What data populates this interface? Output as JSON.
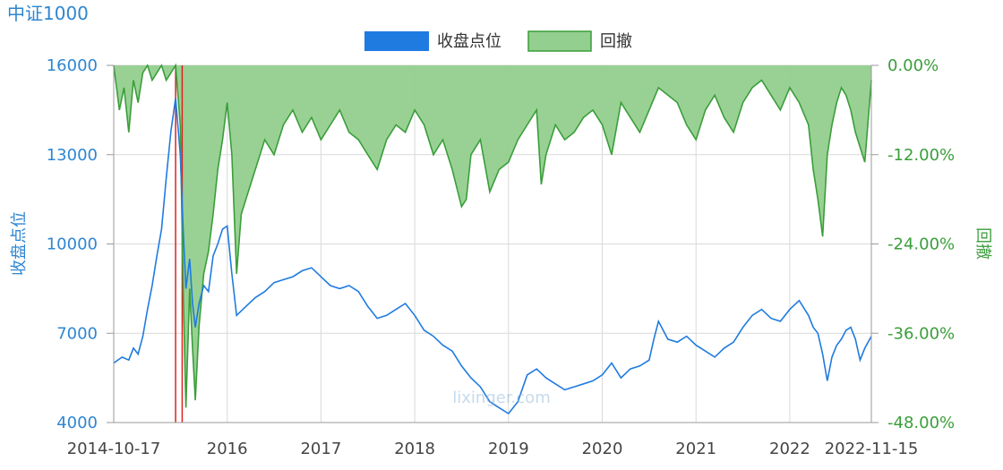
{
  "chart_data": {
    "type": "line",
    "title": "中证1000",
    "legend": [
      {
        "label": "收盘点位",
        "color": "#1f7be0"
      },
      {
        "label": "回撤",
        "color": "#3a9e3a"
      }
    ],
    "legend_placement": "top-center",
    "ylabel_left": "收盘点位",
    "ylabel_right": "回撤",
    "y_left": {
      "min": 4000,
      "max": 16000,
      "ticks": [
        "16000",
        "13000",
        "10000",
        "7000",
        "4000"
      ],
      "tick_values": [
        16000,
        13000,
        10000,
        7000,
        4000
      ]
    },
    "y_right": {
      "min": -48,
      "max": 0,
      "ticks": [
        "0.00%",
        "-12.00%",
        "-24.00%",
        "-36.00%",
        "-48.00%"
      ],
      "tick_values": [
        0,
        -12,
        -24,
        -36,
        -48
      ]
    },
    "x_axis": {
      "start": "2014-10-17",
      "end": "2022-11-15",
      "labels": [
        "2014-10-17",
        "2016",
        "2017",
        "2018",
        "2019",
        "2020",
        "2021",
        "2022",
        "2022-11-15"
      ],
      "label_values": [
        2014.79,
        2016.0,
        2017.0,
        2018.0,
        2019.0,
        2020.0,
        2021.0,
        2022.0,
        2022.87
      ]
    },
    "grid": true,
    "markers": [
      {
        "x": 2015.45,
        "color": "#e02020"
      },
      {
        "x": 2015.52,
        "color": "#e02020"
      }
    ],
    "watermark": "lixinger.com",
    "series": [
      {
        "name": "收盘点位",
        "color": "#1f7be0",
        "axis": "left",
        "x": [
          2014.79,
          2014.88,
          2014.95,
          2015.0,
          2015.05,
          2015.1,
          2015.15,
          2015.2,
          2015.25,
          2015.3,
          2015.35,
          2015.4,
          2015.45,
          2015.5,
          2015.53,
          2015.56,
          2015.6,
          2015.63,
          2015.66,
          2015.7,
          2015.75,
          2015.8,
          2015.85,
          2015.9,
          2015.95,
          2016.0,
          2016.05,
          2016.1,
          2016.2,
          2016.3,
          2016.4,
          2016.5,
          2016.6,
          2016.7,
          2016.8,
          2016.9,
          2017.0,
          2017.1,
          2017.2,
          2017.3,
          2017.4,
          2017.5,
          2017.6,
          2017.7,
          2017.8,
          2017.9,
          2018.0,
          2018.1,
          2018.2,
          2018.3,
          2018.4,
          2018.5,
          2018.6,
          2018.7,
          2018.8,
          2018.9,
          2019.0,
          2019.1,
          2019.2,
          2019.3,
          2019.4,
          2019.5,
          2019.6,
          2019.7,
          2019.8,
          2019.9,
          2020.0,
          2020.1,
          2020.2,
          2020.3,
          2020.4,
          2020.5,
          2020.55,
          2020.6,
          2020.7,
          2020.8,
          2020.9,
          2021.0,
          2021.1,
          2021.2,
          2021.3,
          2021.4,
          2021.5,
          2021.6,
          2021.7,
          2021.8,
          2021.9,
          2022.0,
          2022.1,
          2022.2,
          2022.25,
          2022.3,
          2022.35,
          2022.4,
          2022.45,
          2022.5,
          2022.55,
          2022.6,
          2022.65,
          2022.7,
          2022.75,
          2022.8,
          2022.87
        ],
        "y": [
          6000,
          6200,
          6100,
          6500,
          6300,
          6900,
          7800,
          8600,
          9600,
          10500,
          12200,
          13800,
          14900,
          13000,
          10500,
          8500,
          9500,
          8000,
          7200,
          8000,
          8600,
          8400,
          9600,
          10000,
          10500,
          10600,
          9000,
          7600,
          7900,
          8200,
          8400,
          8700,
          8800,
          8900,
          9100,
          9200,
          8900,
          8600,
          8500,
          8600,
          8400,
          7900,
          7500,
          7600,
          7800,
          8000,
          7600,
          7100,
          6900,
          6600,
          6400,
          5900,
          5500,
          5200,
          4700,
          4500,
          4300,
          4700,
          5600,
          5800,
          5500,
          5300,
          5100,
          5200,
          5300,
          5400,
          5600,
          6000,
          5500,
          5800,
          5900,
          6100,
          6800,
          7400,
          6800,
          6700,
          6900,
          6600,
          6400,
          6200,
          6500,
          6700,
          7200,
          7600,
          7800,
          7500,
          7400,
          7800,
          8100,
          7600,
          7200,
          7000,
          6300,
          5400,
          6200,
          6600,
          6800,
          7100,
          7200,
          6800,
          6100,
          6500,
          6900
        ]
      },
      {
        "name": "回撤",
        "color": "#3a9e3a",
        "axis": "right",
        "x": [
          2014.79,
          2014.85,
          2014.9,
          2014.95,
          2015.0,
          2015.05,
          2015.1,
          2015.15,
          2015.2,
          2015.25,
          2015.3,
          2015.35,
          2015.4,
          2015.45,
          2015.5,
          2015.53,
          2015.56,
          2015.6,
          2015.63,
          2015.66,
          2015.7,
          2015.75,
          2015.8,
          2015.85,
          2015.9,
          2015.95,
          2016.0,
          2016.05,
          2016.1,
          2016.15,
          2016.2,
          2016.3,
          2016.4,
          2016.5,
          2016.6,
          2016.7,
          2016.8,
          2016.9,
          2017.0,
          2017.1,
          2017.2,
          2017.3,
          2017.4,
          2017.5,
          2017.6,
          2017.7,
          2017.8,
          2017.9,
          2018.0,
          2018.1,
          2018.2,
          2018.3,
          2018.4,
          2018.5,
          2018.55,
          2018.6,
          2018.7,
          2018.8,
          2018.9,
          2019.0,
          2019.1,
          2019.2,
          2019.3,
          2019.35,
          2019.4,
          2019.5,
          2019.6,
          2019.7,
          2019.8,
          2019.9,
          2020.0,
          2020.1,
          2020.2,
          2020.3,
          2020.4,
          2020.5,
          2020.6,
          2020.7,
          2020.8,
          2020.9,
          2021.0,
          2021.1,
          2021.2,
          2021.3,
          2021.4,
          2021.5,
          2021.6,
          2021.7,
          2021.8,
          2021.9,
          2022.0,
          2022.1,
          2022.2,
          2022.25,
          2022.3,
          2022.35,
          2022.4,
          2022.45,
          2022.5,
          2022.55,
          2022.6,
          2022.65,
          2022.7,
          2022.75,
          2022.8,
          2022.87
        ],
        "y": [
          0,
          -6,
          -3,
          -9,
          -2,
          -5,
          -1,
          0,
          -2,
          -1,
          0,
          -2,
          -1,
          0,
          -8,
          -30,
          -46,
          -30,
          -38,
          -45,
          -35,
          -28,
          -25,
          -20,
          -14,
          -10,
          -5,
          -12,
          -28,
          -20,
          -18,
          -14,
          -10,
          -12,
          -8,
          -6,
          -9,
          -7,
          -10,
          -8,
          -6,
          -9,
          -10,
          -12,
          -14,
          -10,
          -8,
          -9,
          -6,
          -8,
          -12,
          -10,
          -14,
          -19,
          -18,
          -12,
          -10,
          -17,
          -14,
          -13,
          -10,
          -8,
          -6,
          -16,
          -12,
          -8,
          -10,
          -9,
          -7,
          -6,
          -8,
          -12,
          -5,
          -7,
          -9,
          -6,
          -3,
          -4,
          -5,
          -8,
          -10,
          -6,
          -4,
          -7,
          -9,
          -5,
          -3,
          -2,
          -4,
          -6,
          -3,
          -5,
          -8,
          -14,
          -18,
          -23,
          -12,
          -8,
          -5,
          -3,
          -4,
          -6,
          -9,
          -11,
          -13,
          -2
        ]
      }
    ]
  }
}
